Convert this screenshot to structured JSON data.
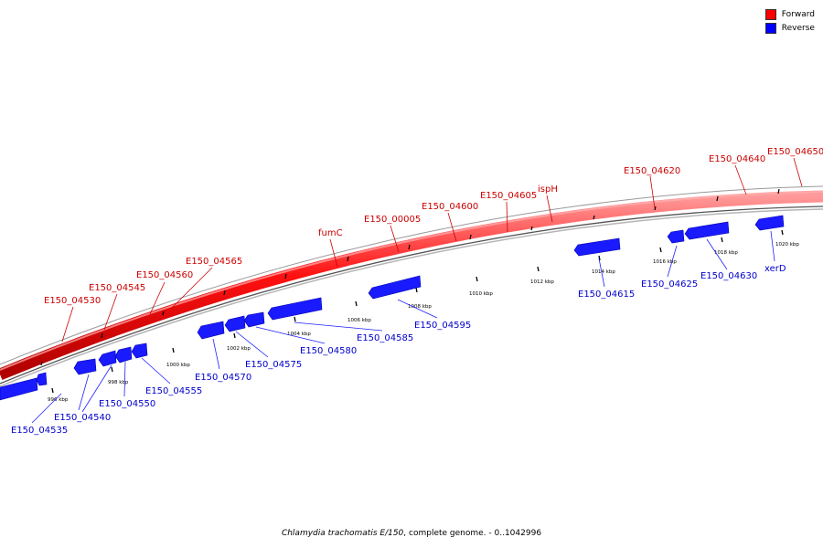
{
  "colors": {
    "forward": "#ff0000",
    "reverse": "#0000ff",
    "backbone": "#888888"
  },
  "legend": {
    "items": [
      {
        "label": "Forward",
        "color": "#ff0000"
      },
      {
        "label": "Reverse",
        "color": "#0000ff"
      }
    ]
  },
  "caption": {
    "organism": "Chlamydia trachomatis E/150",
    "suffix": ", complete genome. - 0..1042996"
  },
  "scale_labels": [
    "996 kbp",
    "998 kbp",
    "1000 kbp",
    "1002 kbp",
    "1004 kbp",
    "1006 kbp",
    "1008 kbp",
    "1010 kbp",
    "1012 kbp",
    "1014 kbp",
    "1016 kbp",
    "1018 kbp",
    "1020 kbp"
  ],
  "forward_labels": [
    "E150_04530",
    "E150_04545",
    "E150_04560",
    "E150_04565",
    "fumC",
    "E150_00005",
    "E150_04600",
    "E150_04605",
    "ispH",
    "E150_04620",
    "E150_04640",
    "E150_04650"
  ],
  "reverse_labels": [
    "E150_04535",
    "E150_04540",
    "E150_04550",
    "E150_04555",
    "E150_04570",
    "E150_04575",
    "E150_04580",
    "E150_04585",
    "E150_04595",
    "E150_04615",
    "E150_04625",
    "E150_04630",
    "xerD"
  ]
}
